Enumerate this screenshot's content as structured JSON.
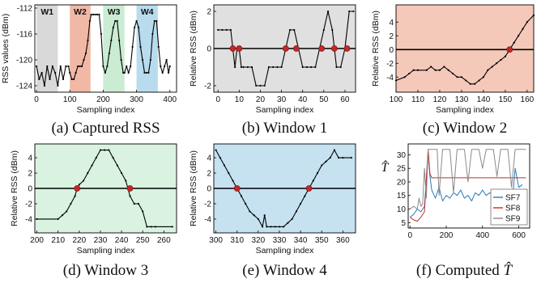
{
  "colors": {
    "panel_gray": "#e0e0e0",
    "panel_salmon": "#f5c9ba",
    "panel_green": "#daf2e0",
    "panel_blue": "#c6e2f1",
    "win1_shade": "#d9d9d9",
    "win2_shade": "#f0b8a5",
    "win3_shade": "#c9ecd3",
    "win4_shade": "#b8dcee",
    "trace": "#000000",
    "crossing": "#c0282a",
    "sf7": "#2a7ab9",
    "sf8": "#c92a2a",
    "sf9": "#8a8a8a"
  },
  "chart_data": [
    {
      "id": "a",
      "type": "line",
      "caption": "(a) Captured RSS",
      "xlabel": "Sampling index",
      "ylabel": "RSS values (dBm)",
      "xlim": [
        -5,
        420
      ],
      "ylim": [
        -125,
        -111.5
      ],
      "xticks": [
        0,
        100,
        200,
        300,
        400
      ],
      "yticks": [
        -112,
        -116,
        -120,
        -124
      ],
      "windows": [
        {
          "label": "W1",
          "from": 0,
          "to": 64
        },
        {
          "label": "W2",
          "from": 100,
          "to": 162
        },
        {
          "label": "W3",
          "from": 200,
          "to": 264
        },
        {
          "label": "W4",
          "from": 300,
          "to": 364
        }
      ],
      "series": [
        {
          "x": [
            0,
            8,
            16,
            24,
            32,
            40,
            48,
            56,
            64,
            72,
            80,
            88,
            96,
            100,
            106,
            112,
            118,
            124,
            130,
            136,
            142,
            148,
            154,
            160,
            164,
            170,
            176,
            182,
            188,
            194,
            200,
            206,
            212,
            218,
            224,
            230,
            236,
            242,
            248,
            254,
            260,
            264,
            270,
            276,
            282,
            288,
            294,
            300,
            306,
            312,
            318,
            324,
            330,
            336,
            342,
            348,
            354,
            360,
            366,
            372,
            378,
            384,
            390,
            396,
            400
          ],
          "y": [
            -121,
            -123,
            -122,
            -124,
            -121,
            -123,
            -121,
            -122,
            -124,
            -121,
            -123,
            -121,
            -121,
            -122,
            -123,
            -123,
            -122,
            -121,
            -121,
            -121,
            -120,
            -119,
            -117,
            -114,
            -113,
            -113,
            -113,
            -113,
            -113,
            -116,
            -121,
            -122,
            -121,
            -119,
            -117,
            -115,
            -114,
            -114,
            -117,
            -120,
            -122,
            -122,
            -121,
            -122,
            -121,
            -118,
            -115,
            -114,
            -115,
            -118,
            -120,
            -122,
            -122,
            -122,
            -120,
            -116,
            -114,
            -114,
            -118,
            -121,
            -122,
            -121,
            -120,
            -122,
            -121
          ]
        }
      ]
    },
    {
      "id": "b",
      "type": "line",
      "caption": "(b) Window 1",
      "xlabel": "Sampling index",
      "ylabel": "Relative RSS (dBm)",
      "xlim": [
        -2,
        65
      ],
      "ylim": [
        -2.35,
        2.35
      ],
      "xticks": [
        0,
        10,
        20,
        30,
        40,
        50,
        60
      ],
      "yticks": [
        2,
        0,
        -2
      ],
      "series": [
        {
          "x": [
            0,
            2,
            4,
            6,
            7,
            8,
            9,
            10,
            11,
            12,
            14,
            16,
            18,
            20,
            22,
            24,
            26,
            28,
            30,
            32,
            34,
            36,
            38,
            40,
            42,
            44,
            46,
            48,
            50,
            52,
            54,
            56,
            58,
            60,
            62,
            64
          ],
          "y": [
            1,
            1,
            1,
            1,
            0,
            -1,
            0,
            0,
            -1,
            -1,
            -1,
            -1,
            -2,
            -2,
            -2,
            -1,
            -1,
            -1,
            -1,
            0,
            1,
            1,
            0,
            -1,
            -1,
            -1,
            -1,
            0,
            1,
            2,
            1,
            -1,
            -1,
            0,
            2,
            2
          ]
        }
      ],
      "crossings": [
        7,
        10,
        32,
        37,
        49,
        55,
        61
      ]
    },
    {
      "id": "c",
      "type": "line",
      "caption": "(c) Window 2",
      "xlabel": "Sampling index",
      "ylabel": "Relative RSS (dBm)",
      "xlim": [
        100,
        163
      ],
      "ylim": [
        -6.2,
        6.5
      ],
      "xticks": [
        100,
        110,
        120,
        130,
        140,
        150,
        160
      ],
      "yticks": [
        4,
        2,
        0,
        -2,
        -4
      ],
      "series": [
        {
          "x": [
            100,
            104,
            106,
            108,
            110,
            114,
            116,
            118,
            120,
            122,
            124,
            126,
            128,
            130,
            132,
            134,
            136,
            138,
            140,
            142,
            144,
            146,
            148,
            150,
            152,
            154,
            156,
            158,
            160,
            163
          ],
          "y": [
            -4.5,
            -4,
            -3.5,
            -3,
            -3,
            -3,
            -2.5,
            -3,
            -3,
            -2.5,
            -3,
            -3.5,
            -4,
            -4,
            -4.5,
            -5,
            -5,
            -4.5,
            -4,
            -3,
            -2.5,
            -2,
            -1.5,
            -1,
            0,
            1,
            2,
            3,
            4,
            5
          ]
        }
      ],
      "crossings": [
        152
      ]
    },
    {
      "id": "d",
      "type": "line",
      "caption": "(d) Window 3",
      "xlabel": "Sampling index",
      "ylabel": "Relative RSS (dBm)",
      "xlim": [
        199,
        266
      ],
      "ylim": [
        -5.8,
        5.8
      ],
      "xticks": [
        200,
        210,
        220,
        230,
        240,
        250,
        260
      ],
      "yticks": [
        4,
        2,
        0,
        -2,
        -4
      ],
      "series": [
        {
          "x": [
            200,
            210,
            212,
            214,
            216,
            218,
            219,
            220,
            222,
            224,
            226,
            228,
            230,
            232,
            234,
            236,
            238,
            240,
            242,
            243,
            244,
            246,
            248,
            250,
            252,
            254,
            256,
            264
          ],
          "y": [
            -4,
            -4,
            -3.5,
            -3,
            -2,
            -1,
            0,
            0.5,
            1,
            2,
            3,
            4,
            5,
            5,
            5,
            4,
            3,
            2,
            1,
            0,
            -1,
            -2,
            -2,
            -3,
            -5,
            -5,
            -5,
            -5
          ]
        }
      ],
      "crossings": [
        219,
        244
      ]
    },
    {
      "id": "e",
      "type": "line",
      "caption": "(e) Window 4",
      "xlabel": "Sampling index",
      "ylabel": "Relative RSS (dBm)",
      "xlim": [
        299,
        366
      ],
      "ylim": [
        -5.8,
        5.8
      ],
      "xticks": [
        300,
        310,
        320,
        330,
        340,
        350,
        360
      ],
      "yticks": [
        4,
        2,
        0,
        -2,
        -4
      ],
      "series": [
        {
          "x": [
            300,
            302,
            304,
            306,
            308,
            310,
            312,
            314,
            316,
            318,
            320,
            322,
            323,
            324,
            326,
            328,
            330,
            332,
            334,
            336,
            338,
            340,
            342,
            344,
            346,
            348,
            350,
            352,
            354,
            356,
            358,
            360,
            364
          ],
          "y": [
            5,
            4,
            3,
            2,
            1,
            0,
            -1,
            -2,
            -3,
            -3.5,
            -4,
            -5,
            -3.5,
            -5,
            -5,
            -5,
            -5,
            -5,
            -4.5,
            -4,
            -3,
            -2,
            -1,
            0,
            1,
            2,
            3,
            3.5,
            4,
            5,
            4,
            4,
            4
          ]
        }
      ],
      "crossings": [
        310,
        344
      ]
    },
    {
      "id": "f",
      "type": "line",
      "caption": "(f) Computed ",
      "caption_symbol": "T̂",
      "ylabel": "T̂",
      "xlim": [
        -10,
        660
      ],
      "ylim": [
        3,
        34
      ],
      "xticks": [
        0,
        200,
        400,
        600
      ],
      "yticks": [
        30,
        25,
        20,
        15,
        10,
        5
      ],
      "legend": [
        "SF7",
        "SF8",
        "SF9"
      ],
      "series": [
        {
          "name": "SF7",
          "x": [
            0,
            20,
            40,
            60,
            80,
            100,
            110,
            120,
            140,
            160,
            180,
            200,
            220,
            240,
            260,
            280,
            300,
            320,
            340,
            360,
            380,
            400,
            420,
            440,
            460,
            480,
            500,
            520,
            540,
            560,
            580,
            600,
            620
          ],
          "y": [
            7,
            8,
            10,
            9,
            11,
            31,
            22,
            17,
            14,
            18,
            13,
            15,
            14,
            16,
            15,
            17,
            14,
            15,
            13,
            16,
            15,
            17,
            15,
            16,
            15,
            10,
            10,
            9,
            10,
            10,
            25,
            18,
            19
          ]
        },
        {
          "name": "SF8",
          "x": [
            0,
            20,
            40,
            60,
            80,
            100,
            110,
            120,
            150,
            200,
            300,
            400,
            500,
            560,
            580,
            600,
            620,
            640
          ],
          "y": [
            7,
            6,
            5.5,
            7,
            9,
            32,
            23,
            21.5,
            21.5,
            21.5,
            21.5,
            21.5,
            21.5,
            21.5,
            21.5,
            21.5,
            21.5,
            21.5
          ]
        },
        {
          "name": "SF9",
          "x": [
            0,
            20,
            40,
            50,
            60,
            70,
            80,
            90,
            100,
            110,
            130,
            150,
            160,
            180,
            200,
            220,
            240,
            260,
            280,
            300,
            320,
            340,
            360,
            380,
            400,
            420,
            440,
            460,
            480,
            500,
            520,
            540,
            560,
            580,
            600,
            620,
            640
          ],
          "y": [
            10,
            11,
            10,
            14,
            11,
            12,
            25,
            14,
            32,
            32,
            32,
            32,
            15,
            32,
            32,
            32,
            16,
            32,
            32,
            32,
            20,
            32,
            32,
            32,
            25,
            32,
            32,
            32,
            22,
            32,
            32,
            32,
            18,
            32,
            32,
            32,
            32
          ]
        }
      ]
    }
  ]
}
